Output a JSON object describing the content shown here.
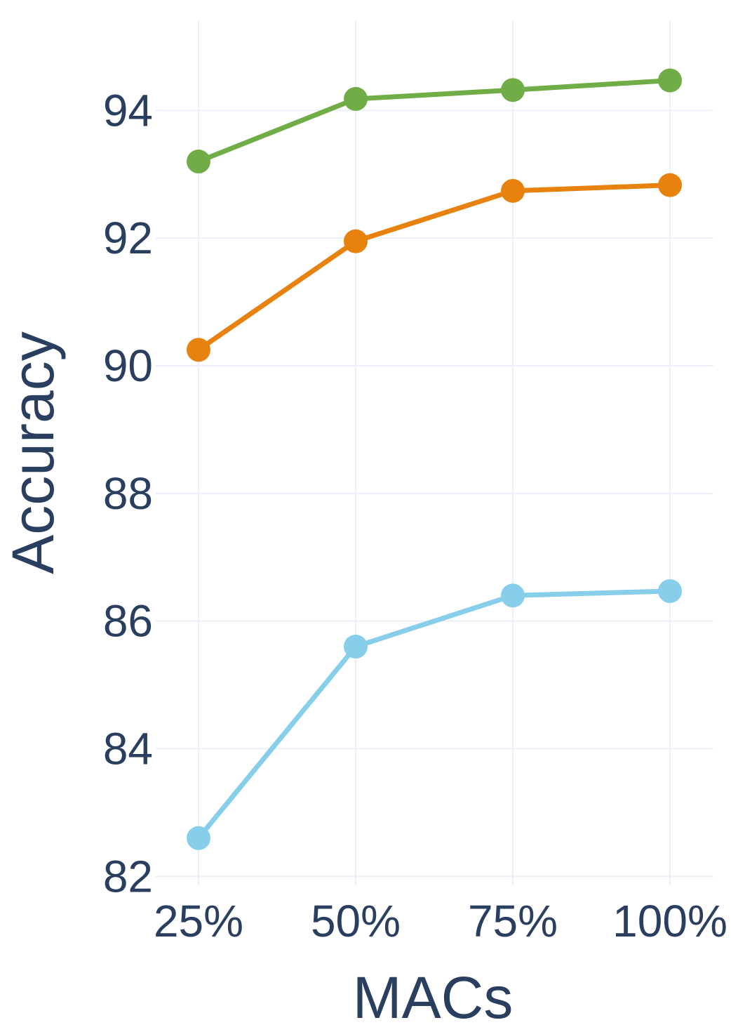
{
  "chart_data": {
    "type": "line",
    "categories": [
      "25%",
      "50%",
      "75%",
      "100%"
    ],
    "xlabel": "MACs",
    "ylabel": "Accuracy",
    "ylim": [
      81.85,
      95.4
    ],
    "yticks": [
      82,
      84,
      86,
      88,
      90,
      92,
      94
    ],
    "grid": true,
    "legend": "none",
    "series": [
      {
        "color": "#70ad47",
        "values": [
          93.2,
          94.18,
          94.32,
          94.47
        ]
      },
      {
        "color": "#e8820e",
        "values": [
          90.25,
          91.95,
          92.74,
          92.83
        ]
      },
      {
        "color": "#87ceeb",
        "values": [
          82.6,
          85.6,
          86.4,
          86.47
        ]
      }
    ]
  }
}
